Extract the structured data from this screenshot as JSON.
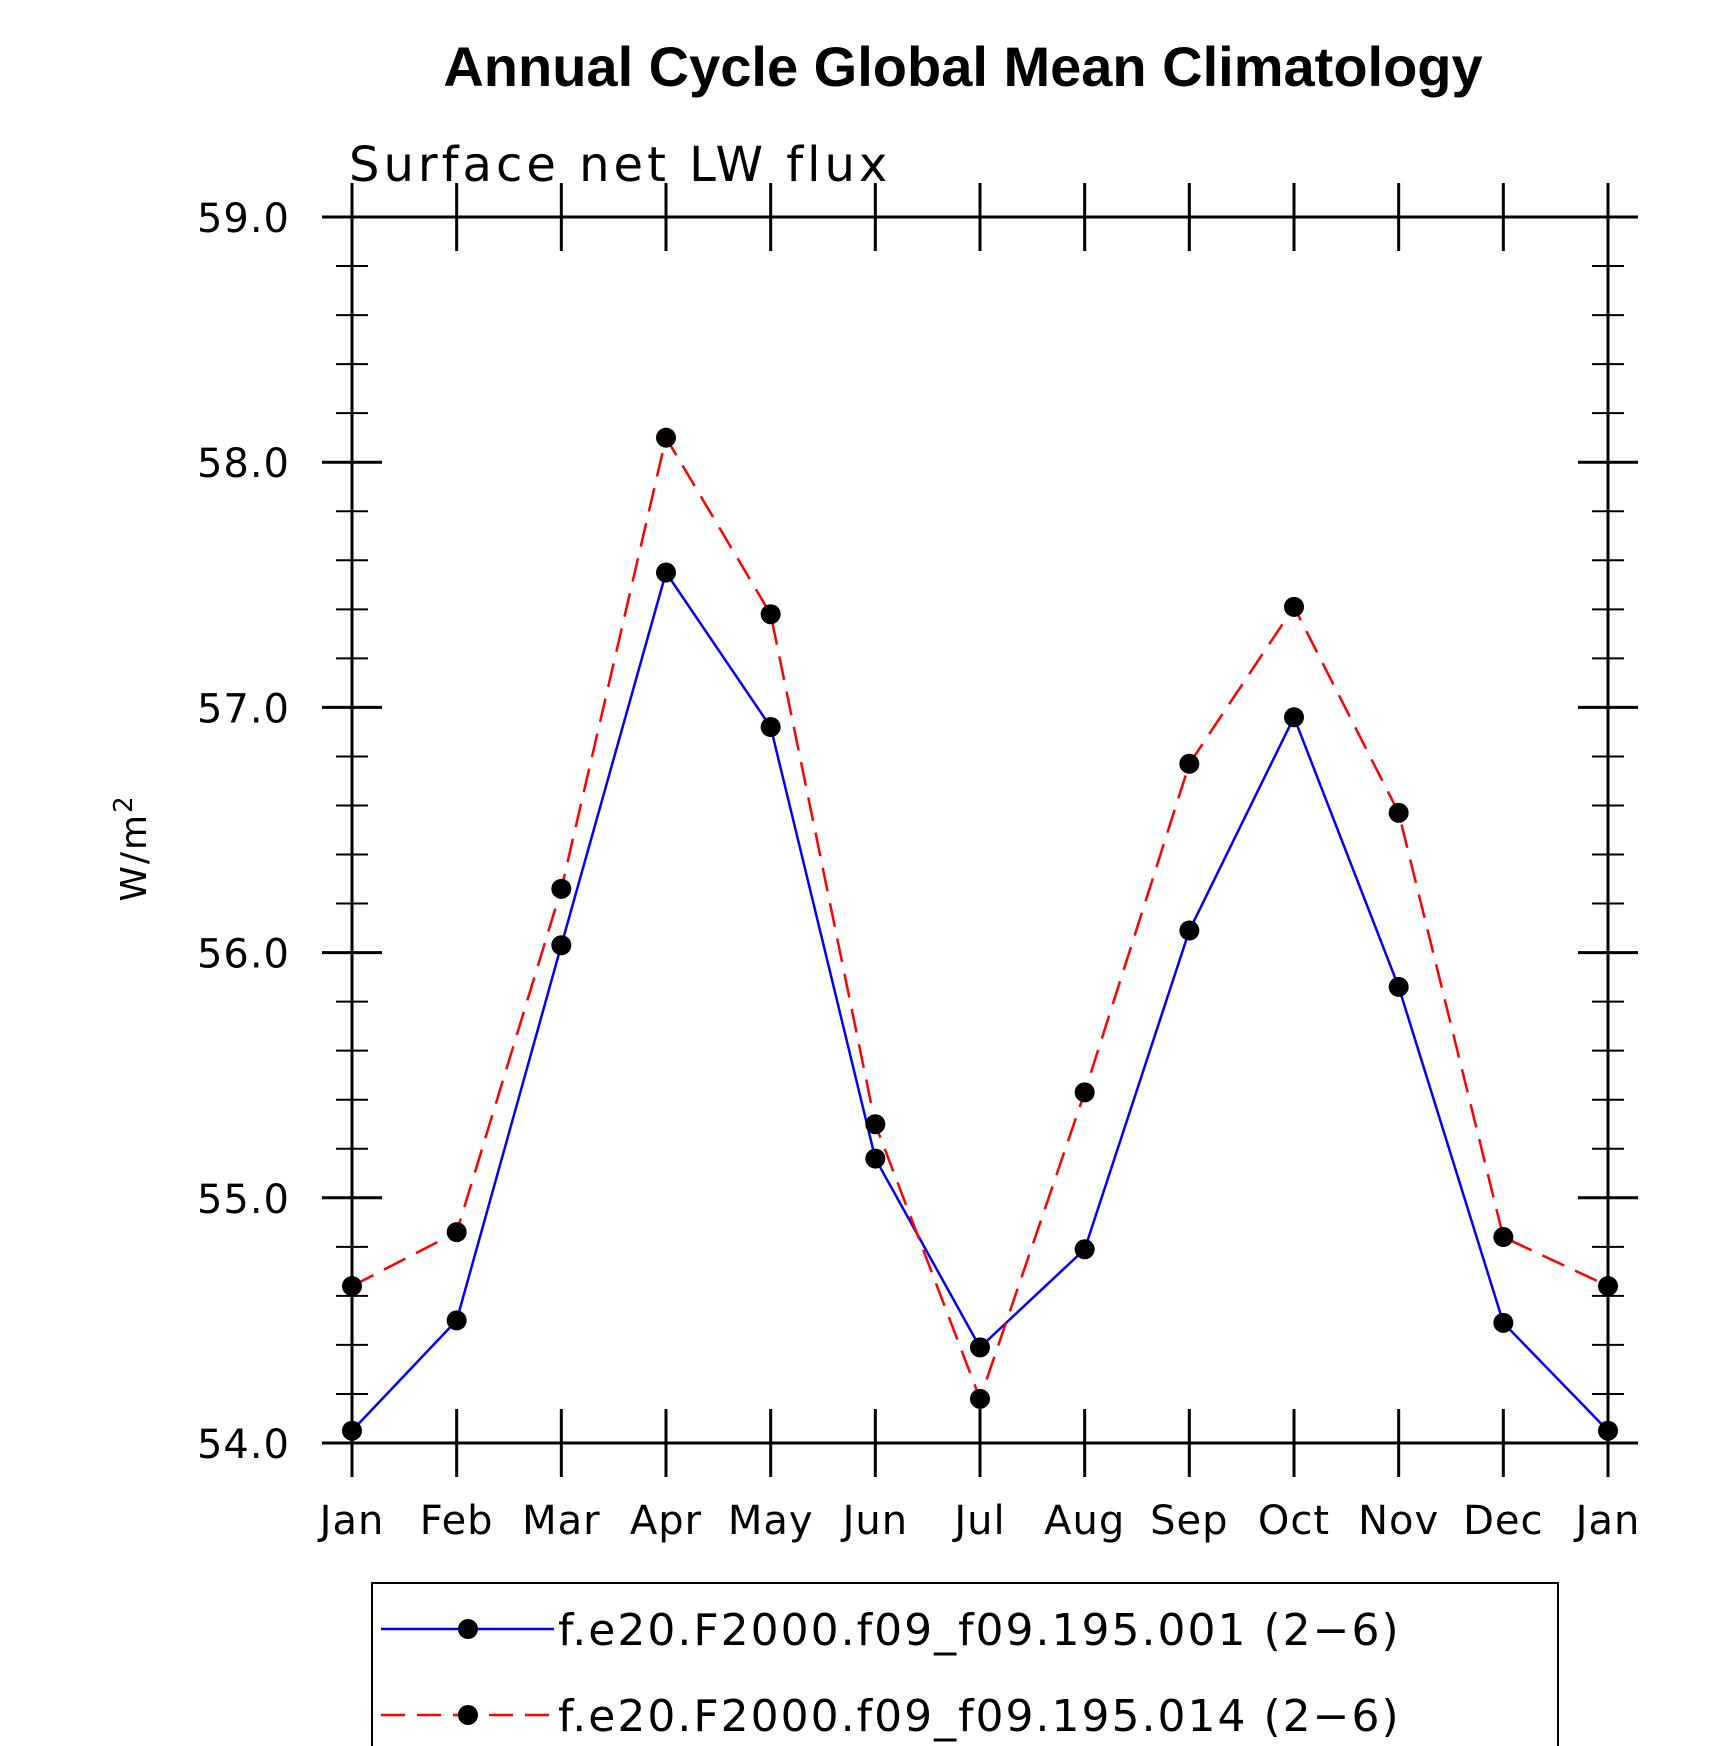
{
  "chart_data": {
    "type": "line",
    "title": "Annual Cycle Global Mean Climatology",
    "subtitle": "Surface net LW flux",
    "ylabel": "W/m",
    "ylabel_superscript": "2",
    "ylim": [
      54.0,
      59.0
    ],
    "categories": [
      "Jan",
      "Feb",
      "Mar",
      "Apr",
      "May",
      "Jun",
      "Jul",
      "Aug",
      "Sep",
      "Oct",
      "Nov",
      "Dec",
      "Jan"
    ],
    "yticks": [
      "54.0",
      "55.0",
      "56.0",
      "57.0",
      "58.0",
      "59.0"
    ],
    "grid": false,
    "legend_position": "bottom",
    "series": [
      {
        "name": "f.e20.F2000.f09_f09.195.001 (2−6)",
        "color": "#0000ff",
        "style": "solid",
        "values": [
          54.05,
          54.5,
          56.03,
          57.55,
          56.92,
          55.16,
          54.39,
          54.79,
          56.09,
          56.96,
          55.86,
          54.49,
          54.05
        ]
      },
      {
        "name": "f.e20.F2000.f09_f09.195.014 (2−6)",
        "color": "#ff0000",
        "style": "dashed",
        "values": [
          54.64,
          54.86,
          56.26,
          58.1,
          57.38,
          55.3,
          54.18,
          55.43,
          56.77,
          57.41,
          56.57,
          54.84,
          54.64
        ]
      }
    ]
  }
}
